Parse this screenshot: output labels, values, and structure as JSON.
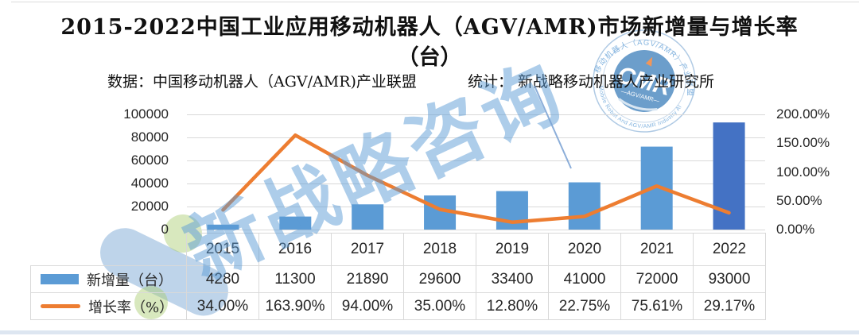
{
  "page": {
    "title_line1": "2015-2022中国工业应用移动机器人（AGV/AMR)市场新增量与增长率",
    "title_line2": "（台）",
    "source_left": "数据：中国移动机器人（AGV/AMR)产业联盟",
    "source_right": "统计： 新战略移动机器人产业研究所"
  },
  "chart_data": {
    "type": "combo-bar-line",
    "title": "2015-2022中国工业应用移动机器人（AGV/AMR)市场新增量与增长率（台）",
    "categories": [
      "2015",
      "2016",
      "2017",
      "2018",
      "2019",
      "2020",
      "2021",
      "2022"
    ],
    "series": [
      {
        "name": "新增量（台）",
        "type": "bar",
        "axis": "left",
        "values": [
          4280,
          11300,
          21890,
          29600,
          33400,
          41000,
          72000,
          93000
        ],
        "color": "#5B9BD5",
        "last_bar_color": "#4472C4"
      },
      {
        "name": "增长率（%）",
        "type": "line",
        "axis": "right",
        "values": [
          34.0,
          163.9,
          94.0,
          35.0,
          12.8,
          22.75,
          75.61,
          29.17
        ],
        "labels": [
          "34.00%",
          "163.90%",
          "94.00%",
          "35.00%",
          "12.80%",
          "22.75%",
          "75.61%",
          "29.17%"
        ],
        "color": "#ED7D31"
      }
    ],
    "left_axis": {
      "ticks": [
        "100000",
        "80000",
        "60000",
        "40000",
        "20000",
        "0"
      ],
      "min": 0,
      "max": 100000
    },
    "right_axis": {
      "ticks": [
        "200.00%",
        "150.00%",
        "100.00%",
        "50.00%",
        "0.00%"
      ],
      "min": 0,
      "max": 200
    },
    "grid": true,
    "grid_color": "#D9D9D9",
    "legend_position": "table-left-column"
  },
  "watermark": {
    "diagonal_text": "新战略咨询",
    "badge": {
      "letters": "CMR",
      "subtext": "—AGV/AMR—",
      "arc_top": "移动机器人（AGV/AMR）产业联盟",
      "arc_bottom": "Mobile Robot And AGV/AMR Industry Alliance"
    },
    "colors": {
      "text_blue": "#5B9BD5",
      "blob_blue": "#7DA9D6",
      "green": "#A8CC6E",
      "badge_inner_blue": "#2E74B5"
    }
  }
}
